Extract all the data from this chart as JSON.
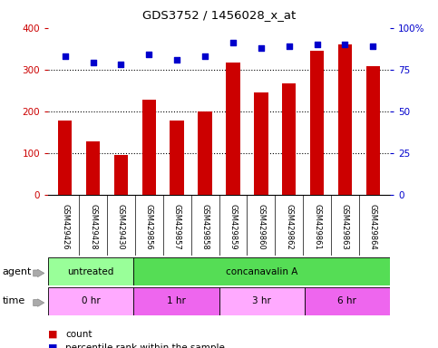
{
  "title": "GDS3752 / 1456028_x_at",
  "categories": [
    "GSM429426",
    "GSM429428",
    "GSM429430",
    "GSM429856",
    "GSM429857",
    "GSM429858",
    "GSM429859",
    "GSM429860",
    "GSM429862",
    "GSM429861",
    "GSM429863",
    "GSM429864"
  ],
  "bar_values": [
    178,
    128,
    95,
    228,
    178,
    200,
    318,
    245,
    268,
    345,
    360,
    308
  ],
  "scatter_values": [
    83,
    79,
    78,
    84,
    81,
    83,
    91,
    88,
    89,
    90,
    90,
    89
  ],
  "bar_color": "#cc0000",
  "scatter_color": "#0000cc",
  "ylim_left": [
    0,
    400
  ],
  "ylim_right": [
    0,
    100
  ],
  "yticks_left": [
    0,
    100,
    200,
    300,
    400
  ],
  "yticks_right": [
    0,
    25,
    50,
    75,
    100
  ],
  "yticklabels_right": [
    "0",
    "25",
    "50",
    "75",
    "100%"
  ],
  "agent_labels": [
    {
      "text": "untreated",
      "start": 0,
      "end": 3,
      "color": "#99ff99"
    },
    {
      "text": "concanavalin A",
      "start": 3,
      "end": 12,
      "color": "#55dd55"
    }
  ],
  "time_labels": [
    {
      "text": "0 hr",
      "start": 0,
      "end": 3,
      "color": "#ffaaff"
    },
    {
      "text": "1 hr",
      "start": 3,
      "end": 6,
      "color": "#ee66ee"
    },
    {
      "text": "3 hr",
      "start": 6,
      "end": 9,
      "color": "#ffaaff"
    },
    {
      "text": "6 hr",
      "start": 9,
      "end": 12,
      "color": "#ee66ee"
    }
  ],
  "legend_count_color": "#cc0000",
  "legend_scatter_color": "#0000cc",
  "bar_width": 0.5,
  "background_color": "#ffffff",
  "xtick_bg_color": "#cccccc",
  "agent_row_label": "agent",
  "time_row_label": "time"
}
